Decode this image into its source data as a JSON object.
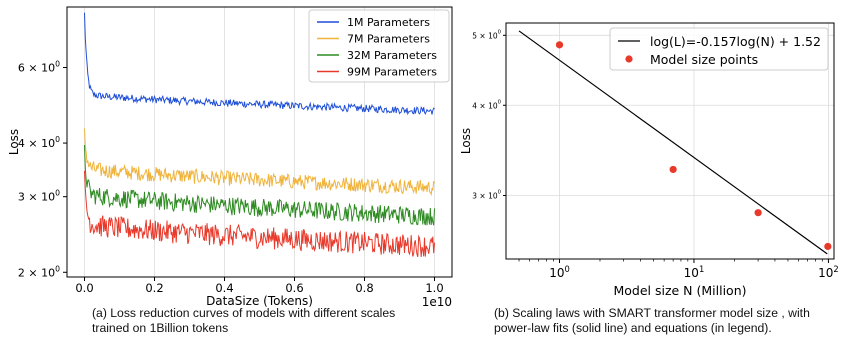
{
  "chart_data": [
    {
      "type": "line",
      "ylabel": "Loss",
      "xlabel": "DataSize (Tokens)",
      "x_offset_label": "1e10",
      "y_scale": "log",
      "xlim": [
        -0.05,
        1.05
      ],
      "ylim": [
        1.95,
        8.3
      ],
      "x_ticks": [
        0.0,
        0.2,
        0.4,
        0.6,
        0.8,
        1.0
      ],
      "x_tick_labels": [
        "0.0",
        "0.2",
        "0.4",
        "0.6",
        "0.8",
        "1.0"
      ],
      "y_ticks": [
        {
          "value": 2,
          "base": "2 × 10",
          "exp": "0"
        },
        {
          "value": 3,
          "base": "3 × 10",
          "exp": "0"
        },
        {
          "value": 4,
          "base": "4 × 10",
          "exp": "0"
        },
        {
          "value": 6,
          "base": "6 × 10",
          "exp": "0"
        }
      ],
      "grid": true,
      "legend_position": "top-right",
      "series": [
        {
          "name": "1M Parameters",
          "color": "#1f4fd8",
          "start": 8.0,
          "plateau": 5.2,
          "end": 4.75,
          "noise": 0.02
        },
        {
          "name": "7M Parameters",
          "color": "#f0b43c",
          "start": 4.2,
          "plateau": 3.5,
          "end": 3.15,
          "noise": 0.04
        },
        {
          "name": "32M Parameters",
          "color": "#2e8b22",
          "start": 3.8,
          "plateau": 3.05,
          "end": 2.7,
          "noise": 0.05
        },
        {
          "name": "99M Parameters",
          "color": "#e8392a",
          "start": 3.3,
          "plateau": 2.6,
          "end": 2.3,
          "noise": 0.06
        }
      ],
      "caption_lines": [
        "(a) Loss reduction curves of models with different scales",
        "trained on 1Billion tokens"
      ]
    },
    {
      "type": "scatter",
      "ylabel": "Loss",
      "xlabel": "Model size N (Million)",
      "x_scale": "log",
      "y_scale": "log",
      "xlim": [
        0.4,
        110
      ],
      "ylim": [
        2.45,
        5.2
      ],
      "x_ticks": [
        {
          "value": 1,
          "base": "10",
          "exp": "0"
        },
        {
          "value": 10,
          "base": "10",
          "exp": "1"
        },
        {
          "value": 100,
          "base": "10",
          "exp": "2"
        }
      ],
      "y_ticks": [
        {
          "value": 3,
          "base": "3 × 10",
          "exp": "0"
        },
        {
          "value": 4,
          "base": "4 × 10",
          "exp": "0"
        },
        {
          "value": 5,
          "base": "5 × 10",
          "exp": "0"
        }
      ],
      "grid": true,
      "legend_position": "top-right",
      "fit_line": {
        "name": "log(L)=-0.157log(N) + 1.52",
        "color": "#000000",
        "x": [
          0.5,
          98
        ],
        "y": [
          5.07,
          2.49
        ]
      },
      "points": {
        "name": "Model size points",
        "color": "#e8392a",
        "x": [
          1,
          7,
          30,
          99
        ],
        "y": [
          4.85,
          3.26,
          2.84,
          2.55
        ]
      },
      "caption_lines": [
        "(b) Scaling laws with SMART transformer model size , with",
        "power-law fits (solid line) and equations (in legend)."
      ]
    }
  ]
}
